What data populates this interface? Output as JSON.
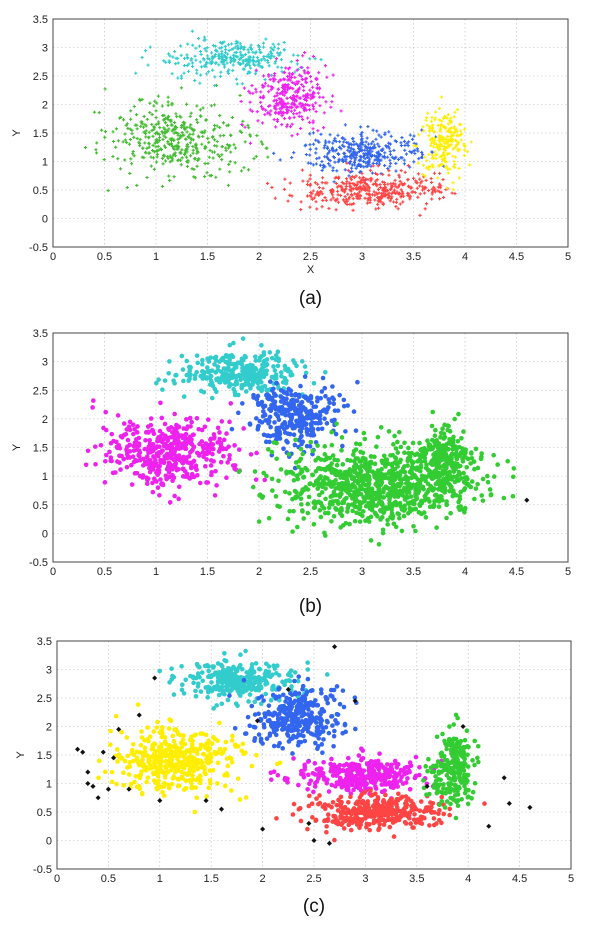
{
  "chart_data": [
    {
      "type": "scatter",
      "caption": "(a)",
      "xlabel": "X",
      "ylabel": "Y",
      "xlim": [
        0,
        5
      ],
      "ylim": [
        -0.5,
        3.5
      ],
      "xticks": [
        "0",
        "0.5",
        "1",
        "1.5",
        "2",
        "2.5",
        "3",
        "3.5",
        "4",
        "4.5",
        "5"
      ],
      "yticks": [
        "-0.5",
        "0",
        "0.5",
        "1",
        "1.5",
        "2",
        "2.5",
        "3",
        "3.5"
      ],
      "grid": true,
      "marker": "plus",
      "series": [
        {
          "color": "#44bb33",
          "center": [
            1.2,
            1.4
          ],
          "spread": [
            0.33,
            0.32
          ],
          "count": 420
        },
        {
          "color": "#33cccc",
          "center": [
            1.75,
            2.8
          ],
          "spread": [
            0.3,
            0.16
          ],
          "count": 300
        },
        {
          "color": "#ee22ee",
          "center": [
            2.3,
            2.15
          ],
          "spread": [
            0.18,
            0.28
          ],
          "count": 320
        },
        {
          "color": "#3366ee",
          "center": [
            3.0,
            1.15
          ],
          "spread": [
            0.28,
            0.18
          ],
          "count": 340
        },
        {
          "color": "#ff4444",
          "center": [
            3.1,
            0.5
          ],
          "spread": [
            0.36,
            0.16
          ],
          "count": 380
        },
        {
          "color": "#ffee00",
          "center": [
            3.8,
            1.3
          ],
          "spread": [
            0.1,
            0.26
          ],
          "count": 230
        }
      ]
    },
    {
      "type": "scatter",
      "caption": "(b)",
      "xlabel": "",
      "ylabel": "Y",
      "xlim": [
        0,
        5
      ],
      "ylim": [
        -0.5,
        3.5
      ],
      "xticks": [
        "0",
        "0.5",
        "1",
        "1.5",
        "2",
        "2.5",
        "3",
        "3.5",
        "4",
        "4.5",
        "5"
      ],
      "yticks": [
        "-0.5",
        "0",
        "0.5",
        "1",
        "1.5",
        "2",
        "2.5",
        "3",
        "3.5"
      ],
      "grid": true,
      "marker": "dot",
      "series": [
        {
          "color": "#ee22ee",
          "center": [
            1.15,
            1.4
          ],
          "spread": [
            0.33,
            0.3
          ],
          "count": 430
        },
        {
          "color": "#33cccc",
          "center": [
            1.8,
            2.8
          ],
          "spread": [
            0.28,
            0.18
          ],
          "count": 310
        },
        {
          "color": "#3366ee",
          "center": [
            2.35,
            2.05
          ],
          "spread": [
            0.22,
            0.28
          ],
          "count": 320
        },
        {
          "color": "#33cc33",
          "center": [
            3.15,
            0.85
          ],
          "spread": [
            0.45,
            0.35
          ],
          "count": 900
        },
        {
          "color": "#33cc33",
          "center": [
            3.8,
            1.3
          ],
          "spread": [
            0.12,
            0.3
          ],
          "count": 220
        },
        {
          "color": "#111111",
          "points": [
            [
              4.6,
              0.58
            ]
          ]
        }
      ]
    },
    {
      "type": "scatter",
      "caption": "(c)",
      "xlabel": "",
      "ylabel": "Y",
      "xlim": [
        0,
        5
      ],
      "ylim": [
        -0.5,
        3.5
      ],
      "xticks": [
        "0",
        "0.5",
        "1",
        "1.5",
        "2",
        "2.5",
        "3",
        "3.5",
        "4",
        "4.5",
        "5"
      ],
      "yticks": [
        "-0.5",
        "0",
        "0.5",
        "1",
        "1.5",
        "2",
        "2.5",
        "3",
        "3.5"
      ],
      "grid": true,
      "marker": "dot",
      "series": [
        {
          "color": "#ffee00",
          "center": [
            1.15,
            1.4
          ],
          "spread": [
            0.3,
            0.28
          ],
          "count": 420
        },
        {
          "color": "#33cccc",
          "center": [
            1.75,
            2.8
          ],
          "spread": [
            0.28,
            0.16
          ],
          "count": 300
        },
        {
          "color": "#3366ee",
          "center": [
            2.35,
            2.15
          ],
          "spread": [
            0.22,
            0.28
          ],
          "count": 320
        },
        {
          "color": "#ee22ee",
          "center": [
            3.0,
            1.15
          ],
          "spread": [
            0.3,
            0.15
          ],
          "count": 330
        },
        {
          "color": "#ff4444",
          "center": [
            3.1,
            0.5
          ],
          "spread": [
            0.33,
            0.15
          ],
          "count": 360
        },
        {
          "color": "#33cc33",
          "center": [
            3.85,
            1.25
          ],
          "spread": [
            0.11,
            0.3
          ],
          "count": 230
        },
        {
          "color": "#111111",
          "points": [
            [
              0.25,
              1.55
            ],
            [
              0.3,
              1.2
            ],
            [
              0.35,
              0.95
            ],
            [
              0.4,
              0.75
            ],
            [
              0.45,
              1.55
            ],
            [
              0.3,
              1.0
            ],
            [
              0.5,
              0.9
            ],
            [
              0.6,
              1.95
            ],
            [
              0.7,
              0.9
            ],
            [
              0.8,
              2.2
            ],
            [
              0.95,
              2.85
            ],
            [
              1.0,
              0.7
            ],
            [
              1.45,
              0.7
            ],
            [
              1.6,
              0.55
            ],
            [
              1.95,
              2.1
            ],
            [
              2.0,
              0.2
            ],
            [
              2.25,
              2.65
            ],
            [
              2.7,
              3.4
            ],
            [
              2.9,
              2.45
            ],
            [
              2.45,
              0.3
            ],
            [
              2.5,
              0.0
            ],
            [
              2.65,
              -0.05
            ],
            [
              3.6,
              0.95
            ],
            [
              3.95,
              2.0
            ],
            [
              4.2,
              0.25
            ],
            [
              4.35,
              1.1
            ],
            [
              4.4,
              0.65
            ],
            [
              4.6,
              0.58
            ],
            [
              0.2,
              1.6
            ],
            [
              0.55,
              1.45
            ]
          ]
        }
      ]
    }
  ]
}
